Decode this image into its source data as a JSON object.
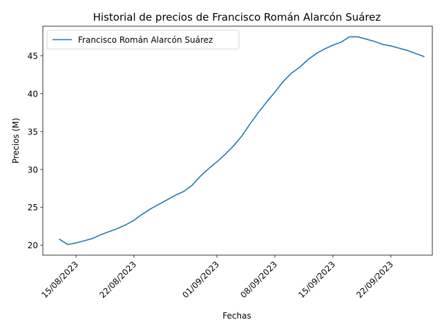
{
  "chart_data": {
    "type": "line",
    "title": "Historial de precios de Francisco Román Alarcón Suárez",
    "xlabel": "Fechas",
    "ylabel": "Precios (M)",
    "xlim": [
      "2023-08-11",
      "2023-09-27"
    ],
    "ylim": [
      18.7,
      48.9
    ],
    "x_ticks": [
      "15/08/2023",
      "22/08/2023",
      "01/09/2023",
      "08/09/2023",
      "15/09/2023",
      "22/09/2023"
    ],
    "y_ticks": [
      20,
      25,
      30,
      35,
      40,
      45
    ],
    "grid": false,
    "legend_position": "upper-left",
    "series_color": "#1f77b4",
    "series": [
      {
        "name": "Francisco Román Alarcón Suárez",
        "x": [
          "2023-08-13",
          "2023-08-14",
          "2023-08-15",
          "2023-08-16",
          "2023-08-17",
          "2023-08-18",
          "2023-08-19",
          "2023-08-20",
          "2023-08-21",
          "2023-08-22",
          "2023-08-23",
          "2023-08-24",
          "2023-08-25",
          "2023-08-26",
          "2023-08-27",
          "2023-08-28",
          "2023-08-29",
          "2023-08-30",
          "2023-08-31",
          "2023-09-01",
          "2023-09-02",
          "2023-09-03",
          "2023-09-04",
          "2023-09-05",
          "2023-09-06",
          "2023-09-07",
          "2023-09-08",
          "2023-09-09",
          "2023-09-10",
          "2023-09-11",
          "2023-09-12",
          "2023-09-13",
          "2023-09-14",
          "2023-09-15",
          "2023-09-16",
          "2023-09-17",
          "2023-09-18",
          "2023-09-19",
          "2023-09-20",
          "2023-09-21",
          "2023-09-22",
          "2023-09-23",
          "2023-09-24",
          "2023-09-25",
          "2023-09-26"
        ],
        "values": [
          20.8,
          20.1,
          20.3,
          20.6,
          20.9,
          21.4,
          21.8,
          22.2,
          22.7,
          23.3,
          24.1,
          24.8,
          25.4,
          26.0,
          26.6,
          27.1,
          27.9,
          29.1,
          30.1,
          31.0,
          32.0,
          33.1,
          34.4,
          36.0,
          37.5,
          38.9,
          40.2,
          41.6,
          42.7,
          43.5,
          44.5,
          45.3,
          45.9,
          46.4,
          46.8,
          47.5,
          47.5,
          47.2,
          46.9,
          46.5,
          46.3,
          46.0,
          45.7,
          45.3,
          44.9
        ]
      }
    ]
  }
}
